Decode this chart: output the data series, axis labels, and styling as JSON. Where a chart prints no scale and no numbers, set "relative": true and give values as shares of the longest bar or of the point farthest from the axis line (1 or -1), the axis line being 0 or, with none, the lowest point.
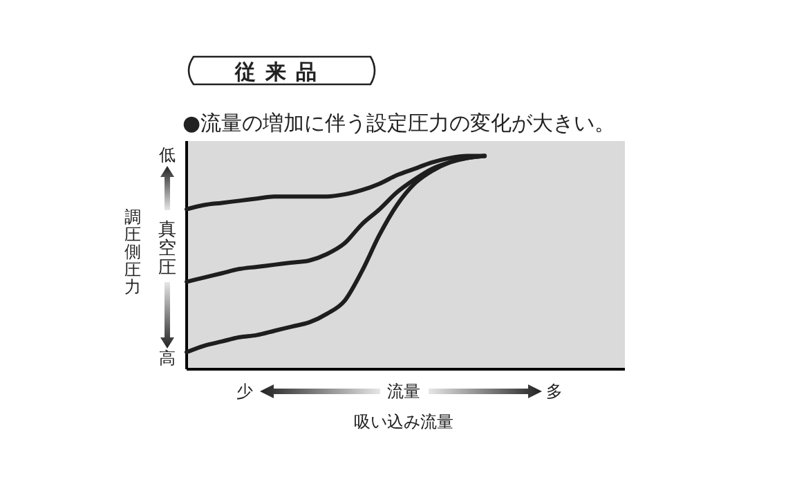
{
  "chart_data": {
    "type": "line",
    "relative": true,
    "title": "従来品",
    "subtitle": "●流量の増加に伴う設定圧力の変化が大きい。",
    "xlabel": "吸い込み流量",
    "ylabel": "調圧側圧力",
    "annotations": [
      "低",
      "高",
      "真空圧",
      "少",
      "流量",
      "多"
    ],
    "categories": [
      null,
      null,
      null,
      null,
      null,
      null,
      null,
      null,
      null,
      null,
      null,
      null,
      null,
      null,
      null,
      null,
      null,
      null,
      null,
      null,
      null,
      null,
      null,
      null,
      null,
      null
    ],
    "series": [
      {
        "color": "#1e1e1e",
        "values": [
          0.75,
          0.77,
          0.78,
          0.79,
          0.8,
          0.81,
          0.81,
          0.81,
          0.81,
          0.82,
          0.84,
          0.87,
          0.91,
          0.94,
          0.97,
          0.99,
          1.0,
          1.0,
          null,
          null,
          null,
          null,
          null,
          null,
          null,
          null
        ]
      },
      {
        "color": "#1e1e1e",
        "values": [
          0.41,
          0.43,
          0.45,
          0.47,
          0.48,
          0.49,
          0.5,
          0.51,
          0.54,
          0.59,
          0.68,
          0.75,
          0.83,
          0.89,
          0.94,
          0.97,
          0.99,
          1.0,
          null,
          null,
          null,
          null,
          null,
          null,
          null,
          null
        ]
      },
      {
        "color": "#1e1e1e",
        "values": [
          0.08,
          0.11,
          0.13,
          0.15,
          0.16,
          0.18,
          0.2,
          0.22,
          0.26,
          0.32,
          0.46,
          0.63,
          0.77,
          0.87,
          0.93,
          0.97,
          0.99,
          1.0,
          null,
          null,
          null,
          null,
          null,
          null,
          null,
          null
        ]
      }
    ],
    "marker": "none",
    "line_style": "solid"
  }
}
